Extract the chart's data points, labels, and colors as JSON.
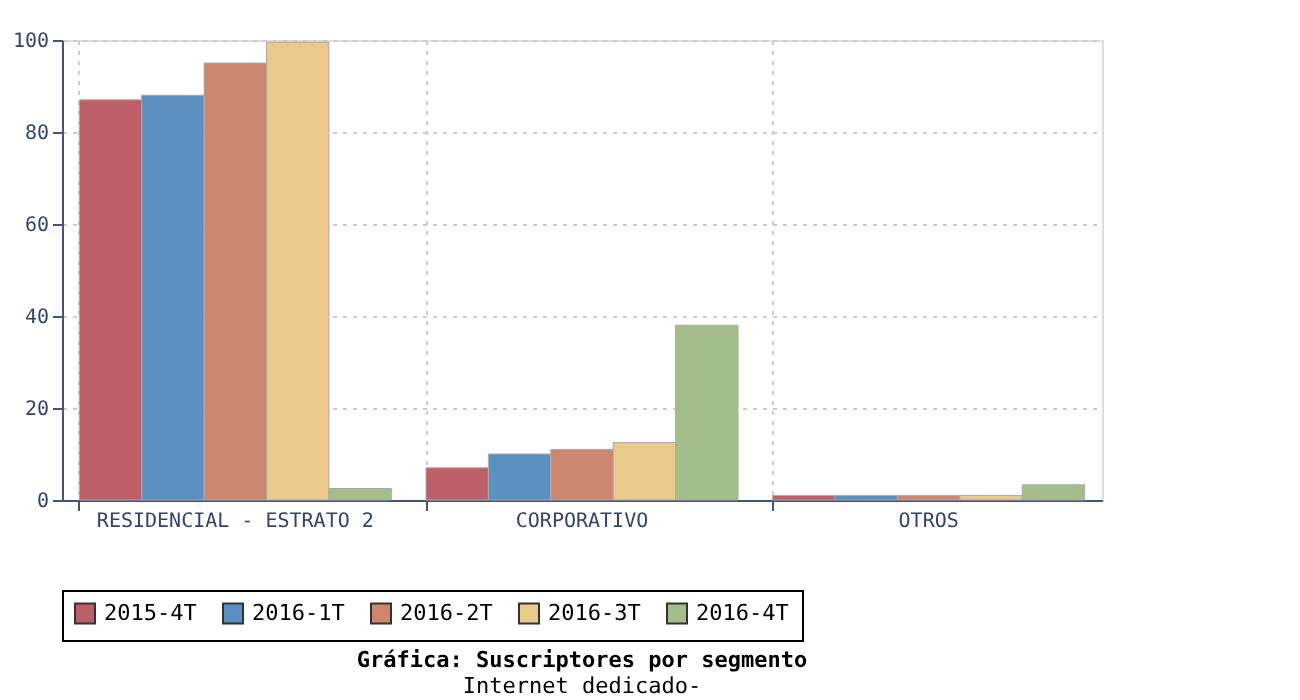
{
  "chart_data": {
    "type": "bar",
    "title": "Gráfica: Suscriptores por segmento",
    "subtitle": "Internet dedicado-",
    "categories": [
      "RESIDENCIAL - ESTRATO 2",
      "CORPORATIVO",
      "OTROS"
    ],
    "series": [
      {
        "name": "2015-4T",
        "color": "#bd5f68",
        "values": [
          87,
          7,
          1
        ]
      },
      {
        "name": "2016-1T",
        "color": "#5b8fbf",
        "values": [
          88,
          10,
          1
        ]
      },
      {
        "name": "2016-2T",
        "color": "#cf866e",
        "values": [
          95,
          11,
          1
        ]
      },
      {
        "name": "2016-3T",
        "color": "#eaca8a",
        "values": [
          99.5,
          12.5,
          1
        ]
      },
      {
        "name": "2016-4T",
        "color": "#a3bd8b",
        "values": [
          2.5,
          38,
          3.3
        ]
      }
    ],
    "ylim": [
      0,
      100
    ],
    "yticks": [
      0,
      20,
      40,
      60,
      80,
      100
    ],
    "grid": true,
    "legend": "bottom"
  }
}
